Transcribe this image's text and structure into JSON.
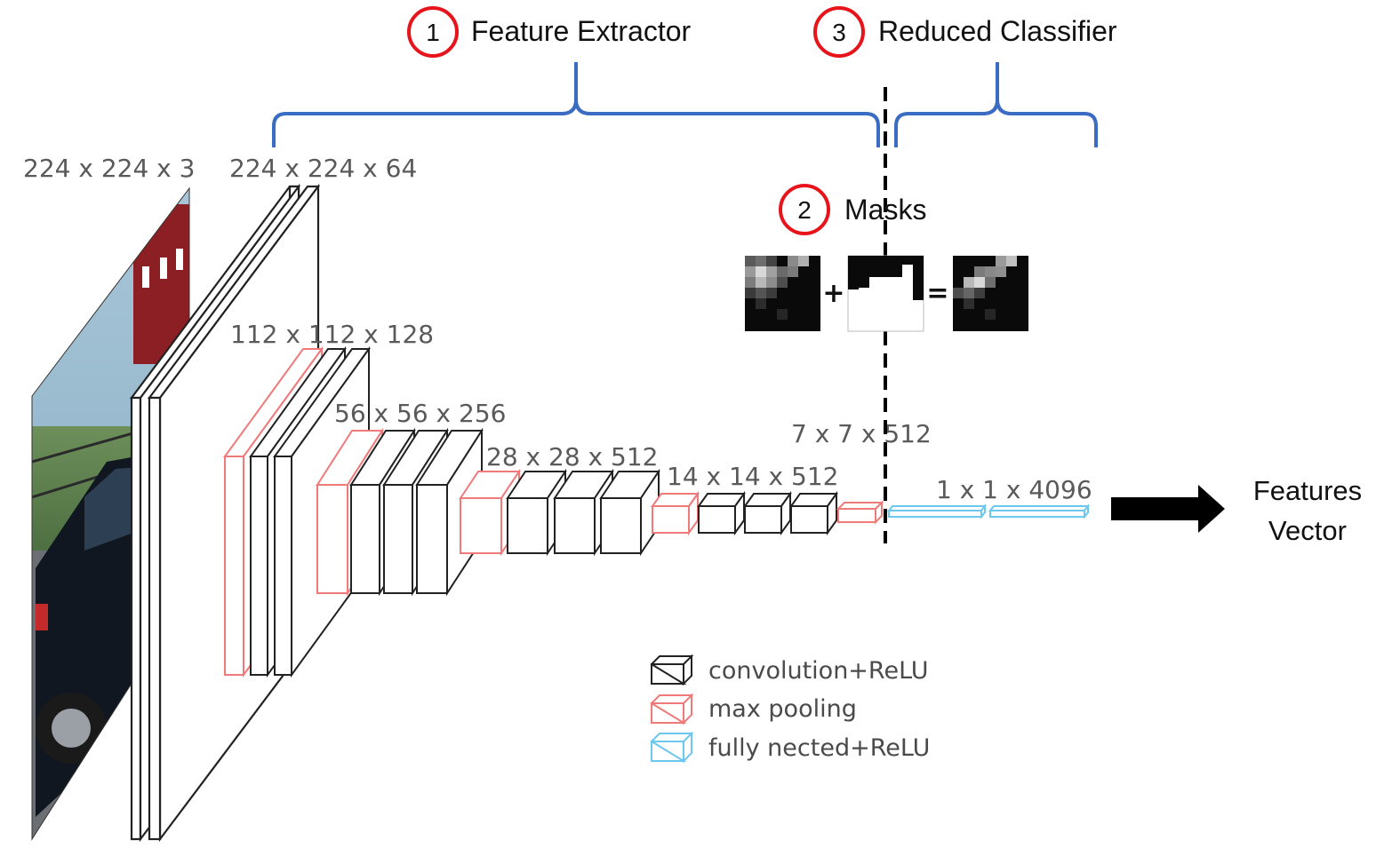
{
  "steps": {
    "feature_extractor": {
      "number": "1",
      "label": "Feature Extractor"
    },
    "masks": {
      "number": "2",
      "label": "Masks"
    },
    "reduced_classifier": {
      "number": "3",
      "label": "Reduced Classifier"
    }
  },
  "dimensions": {
    "input": "224 x 224 x 3",
    "conv1": "224 x 224 x 64",
    "conv2": "112 x 112 x 128",
    "conv3": "56 x 56 x 256",
    "conv4": "28 x 28 x 512",
    "conv5": "14 x 14 x 512",
    "pool5": "7 x 7 x 512",
    "fc": "1 x 1 x 4096"
  },
  "mask_equation": {
    "plus": "+",
    "equals": "="
  },
  "output": {
    "line1": "Features",
    "line2": "Vector"
  },
  "legend": [
    {
      "label": "convolution+ReLU",
      "color": "#222222"
    },
    {
      "label": "max pooling",
      "color": "#f07a7a"
    },
    {
      "label": "fully nected+ReLU",
      "color": "#6cc8ee"
    }
  ],
  "colors": {
    "circle": "#e8141c",
    "brace": "#3a6cc4",
    "conv": "#222222",
    "pool": "#f07a7a",
    "fc": "#6cc8ee"
  }
}
